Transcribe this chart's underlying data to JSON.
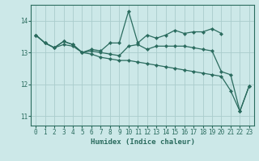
{
  "xlabel": "Humidex (Indice chaleur)",
  "bg_color": "#cce8e8",
  "grid_color": "#aacccc",
  "line_color": "#2a6b5e",
  "xlim": [
    -0.5,
    23.5
  ],
  "ylim": [
    10.7,
    14.5
  ],
  "xticks": [
    0,
    1,
    2,
    3,
    4,
    5,
    6,
    7,
    8,
    9,
    10,
    11,
    12,
    13,
    14,
    15,
    16,
    17,
    18,
    19,
    20,
    21,
    22,
    23
  ],
  "yticks": [
    11,
    12,
    13,
    14
  ],
  "series": [
    {
      "x": [
        0,
        1,
        2,
        3,
        4,
        5,
        6,
        7,
        8,
        9,
        10,
        11,
        12,
        13,
        14,
        15,
        16,
        17,
        18,
        19,
        20,
        21,
        22,
        23
      ],
      "y": [
        13.55,
        13.3,
        13.15,
        13.35,
        13.25,
        13.0,
        13.1,
        13.05,
        13.3,
        13.3,
        14.3,
        13.3,
        13.55,
        13.45,
        13.55,
        13.7,
        13.6,
        13.65,
        13.65,
        13.75,
        13.6,
        null,
        null,
        null
      ]
    },
    {
      "x": [
        0,
        1,
        2,
        3,
        4,
        5,
        6,
        7,
        8,
        9,
        10,
        11,
        12,
        13,
        14,
        15,
        16,
        17,
        18,
        19,
        20,
        21,
        22,
        23
      ],
      "y": [
        13.55,
        13.3,
        13.15,
        13.35,
        13.25,
        13.0,
        13.05,
        13.0,
        12.95,
        12.9,
        13.2,
        13.25,
        13.1,
        13.2,
        13.2,
        13.2,
        13.2,
        13.15,
        13.1,
        13.05,
        12.4,
        12.3,
        11.15,
        11.95
      ]
    },
    {
      "x": [
        0,
        1,
        2,
        3,
        4,
        5,
        6,
        7,
        8,
        9,
        10,
        11,
        12,
        13,
        14,
        15,
        16,
        17,
        18,
        19,
        20,
        21,
        22,
        23
      ],
      "y": [
        13.55,
        13.3,
        13.15,
        13.25,
        13.2,
        13.0,
        12.95,
        12.85,
        12.8,
        12.75,
        12.75,
        12.7,
        12.65,
        12.6,
        12.55,
        12.5,
        12.45,
        12.4,
        12.35,
        12.3,
        12.25,
        11.8,
        11.15,
        11.95
      ]
    }
  ]
}
